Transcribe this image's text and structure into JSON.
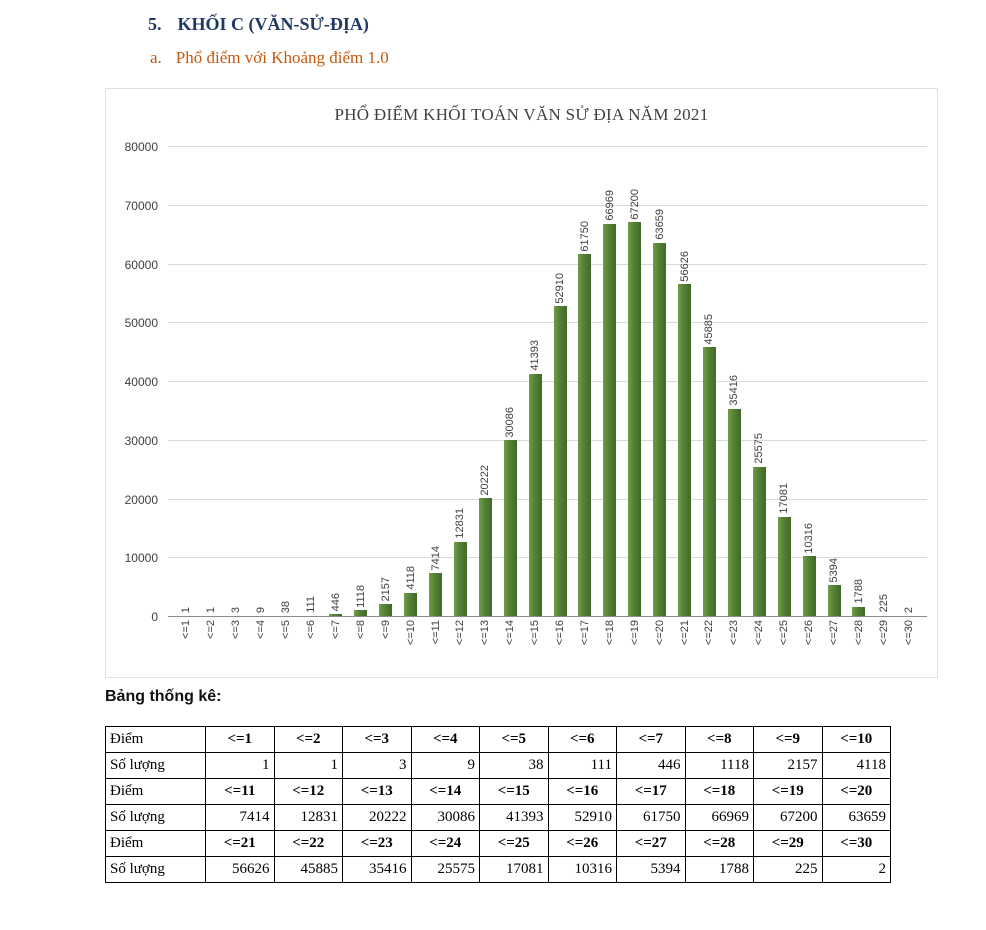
{
  "page": {
    "heading_number": "5.",
    "heading_title": "KHỐI C (VĂN-SỬ-ĐỊA)",
    "subheading_letter": "a.",
    "subheading_title": "Phổ điểm với Khoảng điểm 1.0",
    "table_caption": "Bảng thống kê:"
  },
  "chart_data": {
    "type": "bar",
    "title": "PHỔ ĐIỂM KHỐI TOÁN VĂN SỬ ĐỊA NĂM 2021",
    "categories": [
      "<=1",
      "<=2",
      "<=3",
      "<=4",
      "<=5",
      "<=6",
      "<=7",
      "<=8",
      "<=9",
      "<=10",
      "<=11",
      "<=12",
      "<=13",
      "<=14",
      "<=15",
      "<=16",
      "<=17",
      "<=18",
      "<=19",
      "<=20",
      "<=21",
      "<=22",
      "<=23",
      "<=24",
      "<=25",
      "<=26",
      "<=27",
      "<=28",
      "<=29",
      "<=30"
    ],
    "values": [
      1,
      1,
      3,
      9,
      38,
      111,
      446,
      1118,
      2157,
      4118,
      7414,
      12831,
      20222,
      30086,
      41393,
      52910,
      61750,
      66969,
      67200,
      63659,
      56626,
      45885,
      35416,
      25575,
      17081,
      10316,
      5394,
      1788,
      225,
      2
    ],
    "xlabel": "",
    "ylabel": "",
    "ylim": [
      0,
      80000
    ],
    "yticks": [
      0,
      10000,
      20000,
      30000,
      40000,
      50000,
      60000,
      70000,
      80000
    ],
    "grid": true,
    "legend": false,
    "data_labels": "rotated-above-bar"
  },
  "table": {
    "score_label": "Điểm",
    "count_label": "Số lượng",
    "groups": [
      {
        "scores": [
          "<=1",
          "<=2",
          "<=3",
          "<=4",
          "<=5",
          "<=6",
          "<=7",
          "<=8",
          "<=9",
          "<=10"
        ],
        "counts": [
          1,
          1,
          3,
          9,
          38,
          111,
          446,
          1118,
          2157,
          4118
        ]
      },
      {
        "scores": [
          "<=11",
          "<=12",
          "<=13",
          "<=14",
          "<=15",
          "<=16",
          "<=17",
          "<=18",
          "<=19",
          "<=20"
        ],
        "counts": [
          7414,
          12831,
          20222,
          30086,
          41393,
          52910,
          61750,
          66969,
          67200,
          63659
        ]
      },
      {
        "scores": [
          "<=21",
          "<=22",
          "<=23",
          "<=24",
          "<=25",
          "<=26",
          "<=27",
          "<=28",
          "<=29",
          "<=30"
        ],
        "counts": [
          56626,
          45885,
          35416,
          25575,
          17081,
          10316,
          5394,
          1788,
          225,
          2
        ]
      }
    ]
  },
  "colors": {
    "heading_blue": "#1F3864",
    "subheading_orange": "#C45911",
    "bar_green": "#538135",
    "bar_green_light": "#6F9D49",
    "bar_green_dark": "#44682A",
    "grid_line": "#D9D9D9",
    "axis_line": "#8C8C8C",
    "chart_text": "#404040",
    "table_border": "#000000"
  }
}
